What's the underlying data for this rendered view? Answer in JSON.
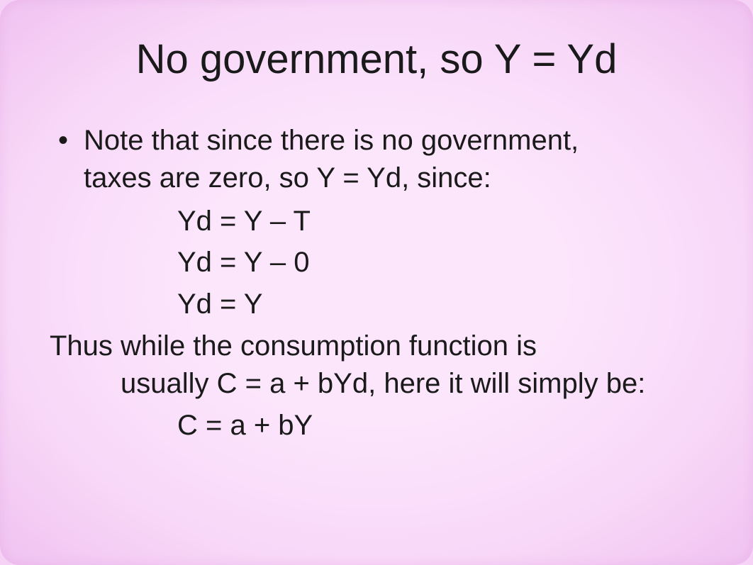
{
  "slide": {
    "title": "No government, so Y = Yd",
    "bullet1_line1": "Note that since there is no government,",
    "bullet1_line2": "taxes are zero, so Y = Yd, since:",
    "eq1": "Yd = Y – T",
    "eq2": "Yd = Y – 0",
    "eq3": "Yd = Y",
    "para2_line1": "Thus while the consumption function is",
    "para2_line2": "usually C = a + bYd, here it will simply be:",
    "eq4": "C = a + bY",
    "colors": {
      "background_inner": "#fce6fc",
      "background_outer": "#f0c2f0",
      "text": "#1a1a1a"
    },
    "typography": {
      "title_fontsize": 58,
      "body_fontsize": 40,
      "font_family": "Arial"
    }
  }
}
